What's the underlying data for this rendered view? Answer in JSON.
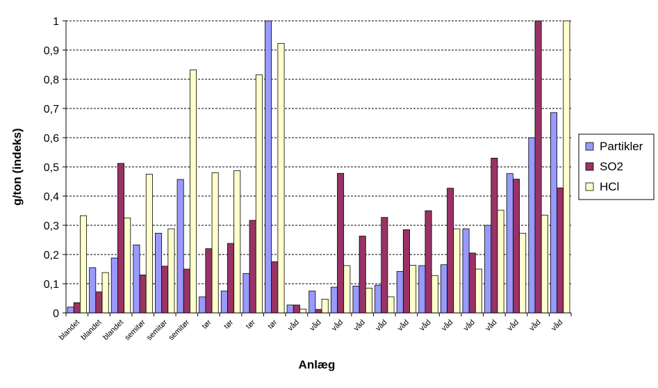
{
  "chart_data": {
    "type": "bar",
    "title": "",
    "xlabel": "Anlæg",
    "ylabel": "g/ton (indeks)",
    "ylim": [
      0,
      1
    ],
    "yticks": [
      "0",
      "0,1",
      "0,2",
      "0,3",
      "0,4",
      "0,5",
      "0,6",
      "0,7",
      "0,8",
      "0,9",
      "1"
    ],
    "grid": true,
    "legend_position": "right",
    "categories": [
      "blandet",
      "blandet",
      "blandet",
      "semitør",
      "semitør",
      "semitør",
      "tør",
      "tør",
      "tør",
      "tør",
      "våd",
      "våd",
      "våd",
      "våd",
      "våd",
      "våd",
      "våd",
      "våd",
      "våd",
      "våd",
      "våd",
      "våd",
      "våd"
    ],
    "series": [
      {
        "name": "Partikler",
        "color": "#9999ff",
        "values": [
          0.02,
          0.155,
          0.188,
          0.233,
          0.273,
          0.457,
          0.055,
          0.075,
          0.135,
          1.0,
          0.027,
          0.075,
          0.088,
          0.092,
          0.095,
          0.142,
          0.162,
          0.165,
          0.288,
          0.3,
          0.477,
          0.6,
          0.686
        ]
      },
      {
        "name": "SO2",
        "color": "#993366",
        "values": [
          0.035,
          0.072,
          0.512,
          0.13,
          0.16,
          0.15,
          0.22,
          0.238,
          0.317,
          0.175,
          0.027,
          0.012,
          0.478,
          0.263,
          0.327,
          0.285,
          0.35,
          0.427,
          0.205,
          0.53,
          0.458,
          1.0,
          0.428
        ]
      },
      {
        "name": "HCl",
        "color": "#ffffcc",
        "values": [
          0.333,
          0.138,
          0.325,
          0.475,
          0.288,
          0.832,
          0.48,
          0.487,
          0.815,
          0.923,
          0.013,
          0.047,
          0.162,
          0.085,
          0.055,
          0.163,
          0.128,
          0.288,
          0.15,
          0.352,
          0.273,
          0.335,
          1.0
        ]
      }
    ]
  }
}
